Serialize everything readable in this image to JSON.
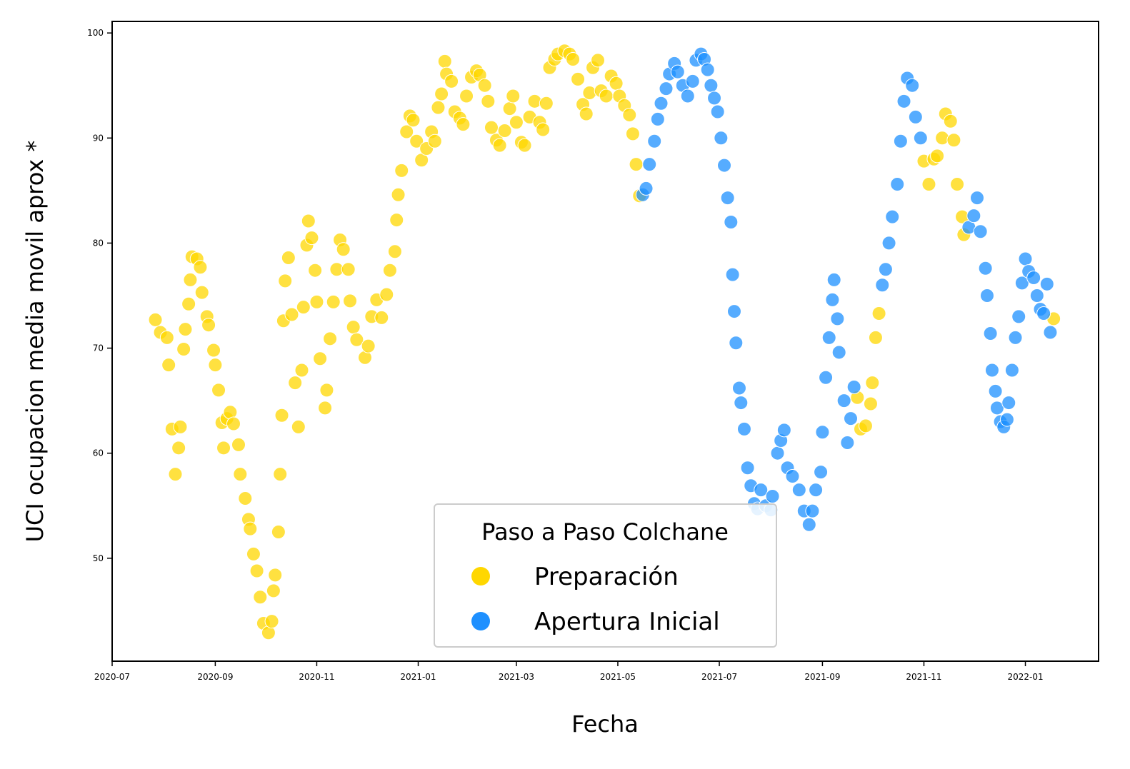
{
  "chart_data": {
    "type": "scatter",
    "xlabel": "Fecha",
    "ylabel": "UCI ocupacion media movil aprox *",
    "legend_title": "Paso a Paso Colchane",
    "legend": "lower center",
    "xlim": [
      "2020-07",
      "2022-02-14"
    ],
    "xticks": [
      "2020-07",
      "2020-09",
      "2020-11",
      "2021-01",
      "2021-03",
      "2021-05",
      "2021-07",
      "2021-09",
      "2021-11",
      "2022-01"
    ],
    "ylim": [
      40.2,
      101.1
    ],
    "yticks": [
      50,
      60,
      70,
      80,
      90,
      100
    ],
    "series": [
      {
        "name": "Preparación",
        "color": "#FFD700",
        "x": [
          "2020-07-27",
          "2020-07-30",
          "2020-08-03",
          "2020-08-04",
          "2020-08-06",
          "2020-08-08",
          "2020-08-10",
          "2020-08-11",
          "2020-08-13",
          "2020-08-14",
          "2020-08-16",
          "2020-08-17",
          "2020-08-18",
          "2020-08-21",
          "2020-08-23",
          "2020-08-24",
          "2020-08-27",
          "2020-08-28",
          "2020-08-31",
          "2020-09-01",
          "2020-09-03",
          "2020-09-05",
          "2020-09-06",
          "2020-09-08",
          "2020-09-10",
          "2020-09-12",
          "2020-09-15",
          "2020-09-16",
          "2020-09-19",
          "2020-09-21",
          "2020-09-22",
          "2020-09-24",
          "2020-09-26",
          "2020-09-28",
          "2020-09-30",
          "2020-10-03",
          "2020-10-05",
          "2020-10-06",
          "2020-10-07",
          "2020-10-09",
          "2020-10-10",
          "2020-10-11",
          "2020-10-12",
          "2020-10-13",
          "2020-10-15",
          "2020-10-17",
          "2020-10-19",
          "2020-10-21",
          "2020-10-23",
          "2020-10-24",
          "2020-10-26",
          "2020-10-27",
          "2020-10-29",
          "2020-10-31",
          "2020-11-01",
          "2020-11-03",
          "2020-11-06",
          "2020-11-07",
          "2020-11-09",
          "2020-11-11",
          "2020-11-13",
          "2020-11-15",
          "2020-11-17",
          "2020-11-20",
          "2020-11-21",
          "2020-11-23",
          "2020-11-25",
          "2020-11-30",
          "2020-12-02",
          "2020-12-04",
          "2020-12-07",
          "2020-12-10",
          "2020-12-13",
          "2020-12-15",
          "2020-12-18",
          "2020-12-19",
          "2020-12-20",
          "2020-12-22",
          "2020-12-25",
          "2020-12-27",
          "2020-12-29",
          "2020-12-31",
          "2021-01-03",
          "2021-01-06",
          "2021-01-09",
          "2021-01-11",
          "2021-01-13",
          "2021-01-15",
          "2021-01-17",
          "2021-01-18",
          "2021-01-21",
          "2021-01-23",
          "2021-01-26",
          "2021-01-28",
          "2021-01-30",
          "2021-02-02",
          "2021-02-05",
          "2021-02-07",
          "2021-02-10",
          "2021-02-12",
          "2021-02-14",
          "2021-02-17",
          "2021-02-19",
          "2021-02-22",
          "2021-02-25",
          "2021-02-27",
          "2021-03-01",
          "2021-03-04",
          "2021-03-06",
          "2021-03-09",
          "2021-03-12",
          "2021-03-15",
          "2021-03-17",
          "2021-03-19",
          "2021-03-21",
          "2021-03-24",
          "2021-03-26",
          "2021-03-30",
          "2021-04-02",
          "2021-04-04",
          "2021-04-07",
          "2021-04-10",
          "2021-04-12",
          "2021-04-14",
          "2021-04-16",
          "2021-04-19",
          "2021-04-21",
          "2021-04-24",
          "2021-04-27",
          "2021-04-30",
          "2021-05-02",
          "2021-05-05",
          "2021-05-08",
          "2021-05-10",
          "2021-05-12",
          "2021-05-14",
          "2021-09-22",
          "2021-09-24",
          "2021-09-27",
          "2021-09-30",
          "2021-10-01",
          "2021-10-03",
          "2021-10-05",
          "2021-11-01",
          "2021-11-04",
          "2021-11-07",
          "2021-11-09",
          "2021-11-12",
          "2021-11-14",
          "2021-11-17",
          "2021-11-19",
          "2021-11-21",
          "2021-11-24",
          "2021-11-25",
          "2022-01-18"
        ],
        "values": [
          72.7,
          71.5,
          71,
          68.4,
          62.3,
          58,
          60.5,
          62.5,
          69.9,
          71.8,
          74.2,
          76.5,
          78.7,
          78.5,
          77.7,
          75.3,
          73,
          72.2,
          69.8,
          68.4,
          66,
          62.9,
          60.5,
          63.3,
          63.9,
          62.8,
          60.8,
          58,
          55.7,
          53.7,
          52.8,
          50.4,
          48.8,
          46.3,
          43.8,
          42.9,
          44,
          46.9,
          48.4,
          52.5,
          58,
          63.6,
          72.6,
          76.4,
          78.6,
          73.2,
          66.7,
          62.5,
          67.9,
          73.9,
          79.8,
          82.1,
          80.5,
          77.4,
          74.4,
          69,
          64.3,
          66,
          70.9,
          74.4,
          77.5,
          80.3,
          79.4,
          77.5,
          74.5,
          72,
          70.8,
          69.1,
          70.2,
          73,
          74.6,
          72.9,
          75.1,
          77.4,
          79.2,
          82.2,
          84.6,
          86.9,
          90.6,
          92.1,
          91.7,
          89.7,
          87.9,
          89,
          90.6,
          89.7,
          92.9,
          94.2,
          97.3,
          96.1,
          95.4,
          92.5,
          91.9,
          91.3,
          94,
          95.8,
          96.4,
          96,
          95,
          93.5,
          91,
          89.8,
          89.3,
          90.7,
          92.8,
          94,
          91.5,
          89.6,
          89.3,
          92,
          93.5,
          91.5,
          90.8,
          93.3,
          96.7,
          97.5,
          98,
          98.3,
          98,
          97.5,
          95.6,
          93.2,
          92.3,
          94.3,
          96.7,
          97.4,
          94.5,
          94,
          95.9,
          95.2,
          94,
          93.1,
          92.2,
          90.4,
          87.5,
          84.5,
          65.3,
          62.3,
          62.6,
          64.7,
          66.7,
          71,
          73.3,
          87.8,
          85.6,
          88,
          88.3,
          90,
          92.3,
          91.6,
          89.8,
          85.6,
          82.5,
          80.8,
          72.8
        ]
      },
      {
        "name": "Apertura Inicial",
        "color": "#1E90FF",
        "x": [
          "2021-05-16",
          "2021-05-18",
          "2021-05-20",
          "2021-05-23",
          "2021-05-25",
          "2021-05-27",
          "2021-05-30",
          "2021-06-01",
          "2021-06-04",
          "2021-06-06",
          "2021-06-09",
          "2021-06-12",
          "2021-06-15",
          "2021-06-17",
          "2021-06-20",
          "2021-06-22",
          "2021-06-24",
          "2021-06-26",
          "2021-06-28",
          "2021-06-30",
          "2021-07-02",
          "2021-07-04",
          "2021-07-06",
          "2021-07-08",
          "2021-07-09",
          "2021-07-10",
          "2021-07-11",
          "2021-07-13",
          "2021-07-14",
          "2021-07-16",
          "2021-07-18",
          "2021-07-20",
          "2021-07-22",
          "2021-07-24",
          "2021-07-26",
          "2021-07-29",
          "2021-08-01",
          "2021-08-02",
          "2021-08-05",
          "2021-08-07",
          "2021-08-09",
          "2021-08-11",
          "2021-08-14",
          "2021-08-18",
          "2021-08-21",
          "2021-08-24",
          "2021-08-26",
          "2021-08-28",
          "2021-08-31",
          "2021-09-01",
          "2021-09-03",
          "2021-09-05",
          "2021-09-07",
          "2021-09-08",
          "2021-09-10",
          "2021-09-11",
          "2021-09-14",
          "2021-09-16",
          "2021-09-18",
          "2021-09-20",
          "2021-10-07",
          "2021-10-09",
          "2021-10-11",
          "2021-10-13",
          "2021-10-16",
          "2021-10-18",
          "2021-10-20",
          "2021-10-22",
          "2021-10-25",
          "2021-10-27",
          "2021-10-30",
          "2021-11-28",
          "2021-12-01",
          "2021-12-03",
          "2021-12-05",
          "2021-12-08",
          "2021-12-09",
          "2021-12-11",
          "2021-12-12",
          "2021-12-14",
          "2021-12-15",
          "2021-12-17",
          "2021-12-19",
          "2021-12-21",
          "2021-12-22",
          "2021-12-24",
          "2021-12-26",
          "2021-12-28",
          "2021-12-30",
          "2022-01-01",
          "2022-01-03",
          "2022-01-06",
          "2022-01-08",
          "2022-01-10",
          "2022-01-12",
          "2022-01-14",
          "2022-01-16"
        ],
        "values": [
          84.6,
          85.2,
          87.5,
          89.7,
          91.8,
          93.3,
          94.7,
          96.1,
          97.1,
          96.3,
          95,
          94,
          95.4,
          97.4,
          98,
          97.5,
          96.5,
          95,
          93.8,
          92.5,
          90,
          87.4,
          84.3,
          82,
          77,
          73.5,
          70.5,
          66.2,
          64.8,
          62.3,
          58.6,
          56.9,
          55.2,
          54.7,
          56.5,
          55,
          54.6,
          55.9,
          60,
          61.2,
          62.2,
          58.6,
          57.8,
          56.5,
          54.5,
          53.2,
          54.5,
          56.5,
          58.2,
          62,
          67.2,
          71,
          74.6,
          76.5,
          72.8,
          69.6,
          65,
          61,
          63.3,
          66.3,
          76,
          77.5,
          80,
          82.5,
          85.6,
          89.7,
          93.5,
          95.7,
          95,
          92,
          90,
          81.5,
          82.6,
          84.3,
          81.1,
          77.6,
          75,
          71.4,
          67.9,
          65.9,
          64.3,
          63,
          62.5,
          63.2,
          64.8,
          67.9,
          71,
          73,
          76.2,
          78.5,
          77.3,
          76.7,
          75,
          73.7,
          73.3,
          76.1,
          71.5
        ]
      }
    ]
  }
}
